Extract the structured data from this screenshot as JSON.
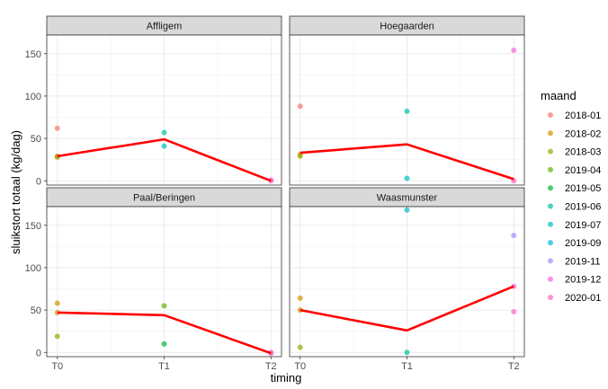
{
  "chart_data": {
    "type": "scatter",
    "title": "",
    "xlabel": "timing",
    "ylabel": "sluikstort totaal (kg/dag)",
    "x_categories": [
      "T0",
      "T1",
      "T2"
    ],
    "y_ticks": [
      0,
      50,
      100,
      150
    ],
    "ylim": [
      -5,
      172
    ],
    "legend": {
      "title": "maand",
      "placement": "right",
      "entries": [
        {
          "label": "2018-01",
          "color": "#F8766D"
        },
        {
          "label": "2018-02",
          "color": "#D39200"
        },
        {
          "label": "2018-03",
          "color": "#93AA00"
        },
        {
          "label": "2019-04",
          "color": "#5BB300"
        },
        {
          "label": "2019-05",
          "color": "#00BA38"
        },
        {
          "label": "2019-06",
          "color": "#00C19F"
        },
        {
          "label": "2019-07",
          "color": "#00BFC4"
        },
        {
          "label": "2019-09",
          "color": "#00B9E3"
        },
        {
          "label": "2019-11",
          "color": "#A58AFF"
        },
        {
          "label": "2019-12",
          "color": "#F564E3"
        },
        {
          "label": "2020-01",
          "color": "#FF61C3"
        }
      ]
    },
    "trend_color": "#FF0000",
    "panels": [
      {
        "name": "Affligem",
        "points": [
          {
            "x": "T0",
            "y": 62,
            "maand": "2018-01"
          },
          {
            "x": "T0",
            "y": 29,
            "maand": "2018-02"
          },
          {
            "x": "T0",
            "y": 28,
            "maand": "2018-03"
          },
          {
            "x": "T1",
            "y": 57,
            "maand": "2019-06"
          },
          {
            "x": "T1",
            "y": 41,
            "maand": "2019-07"
          },
          {
            "x": "T2",
            "y": 1,
            "maand": "2019-12"
          },
          {
            "x": "T2",
            "y": 0,
            "maand": "2020-01"
          }
        ],
        "trend": [
          29,
          49,
          0
        ]
      },
      {
        "name": "Hoegaarden",
        "points": [
          {
            "x": "T0",
            "y": 88,
            "maand": "2018-01"
          },
          {
            "x": "T0",
            "y": 31,
            "maand": "2018-02"
          },
          {
            "x": "T0",
            "y": 29,
            "maand": "2018-03"
          },
          {
            "x": "T1",
            "y": 82,
            "maand": "2019-06"
          },
          {
            "x": "T1",
            "y": 3,
            "maand": "2019-07"
          },
          {
            "x": "T2",
            "y": 154,
            "maand": "2019-12"
          },
          {
            "x": "T2",
            "y": 0,
            "maand": "2020-01"
          }
        ],
        "trend": [
          33,
          43,
          2
        ]
      },
      {
        "name": "Paal/Beringen",
        "points": [
          {
            "x": "T0",
            "y": 58,
            "maand": "2018-02"
          },
          {
            "x": "T0",
            "y": 47,
            "maand": "2018-02"
          },
          {
            "x": "T0",
            "y": 19,
            "maand": "2018-03"
          },
          {
            "x": "T1",
            "y": 55,
            "maand": "2019-04"
          },
          {
            "x": "T1",
            "y": 10,
            "maand": "2019-05"
          },
          {
            "x": "T2",
            "y": 0,
            "maand": "2019-12"
          },
          {
            "x": "T2",
            "y": -1,
            "maand": "2020-01"
          }
        ],
        "trend": [
          47,
          44,
          -1
        ]
      },
      {
        "name": "Waasmunster",
        "points": [
          {
            "x": "T0",
            "y": 64,
            "maand": "2018-02"
          },
          {
            "x": "T0",
            "y": 50,
            "maand": "2018-02"
          },
          {
            "x": "T0",
            "y": 6,
            "maand": "2018-03"
          },
          {
            "x": "T1",
            "y": 168,
            "maand": "2019-07"
          },
          {
            "x": "T1",
            "y": 0,
            "maand": "2019-06"
          },
          {
            "x": "T2",
            "y": 138,
            "maand": "2019-11"
          },
          {
            "x": "T2",
            "y": 78,
            "maand": "2019-12"
          },
          {
            "x": "T2",
            "y": 48,
            "maand": "2020-01"
          }
        ],
        "trend": [
          50,
          26,
          78
        ]
      }
    ]
  }
}
